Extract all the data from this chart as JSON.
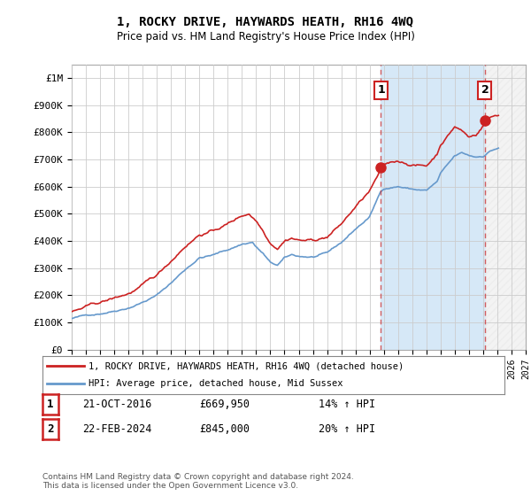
{
  "title": "1, ROCKY DRIVE, HAYWARDS HEATH, RH16 4WQ",
  "subtitle": "Price paid vs. HM Land Registry's House Price Index (HPI)",
  "background_color": "#ffffff",
  "plot_bg_color": "#ffffff",
  "shaded_region_color": "#d6e8f7",
  "hpi_line_color": "#6699cc",
  "price_line_color": "#cc2222",
  "ylim": [
    0,
    1050000
  ],
  "yticks": [
    0,
    100000,
    200000,
    300000,
    400000,
    500000,
    600000,
    700000,
    800000,
    900000,
    1000000
  ],
  "ytick_labels": [
    "£0",
    "£100K",
    "£200K",
    "£300K",
    "£400K",
    "£500K",
    "£600K",
    "£700K",
    "£800K",
    "£900K",
    "£1M"
  ],
  "xlim": [
    1995,
    2027
  ],
  "transaction1": {
    "label": "1",
    "date": "21-OCT-2016",
    "price": 669950,
    "hpi_pct": "14%",
    "x_year": 2016.8
  },
  "transaction2": {
    "label": "2",
    "date": "22-FEB-2024",
    "price": 845000,
    "hpi_pct": "20%",
    "x_year": 2024.13
  },
  "legend_line1": "1, ROCKY DRIVE, HAYWARDS HEATH, RH16 4WQ (detached house)",
  "legend_line2": "HPI: Average price, detached house, Mid Sussex",
  "footer": "Contains HM Land Registry data © Crown copyright and database right 2024.\nThis data is licensed under the Open Government Licence v3.0."
}
